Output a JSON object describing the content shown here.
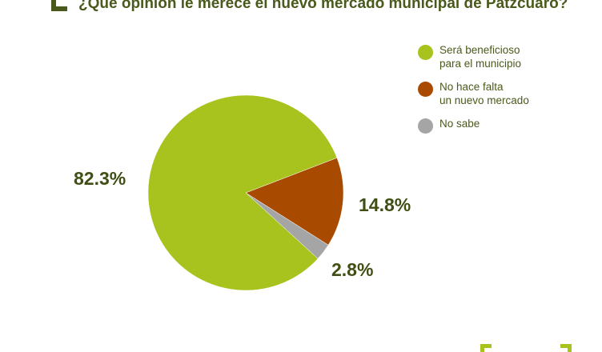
{
  "chart_data": {
    "type": "pie",
    "title": "¿Qué opinión le merece el nuevo mercado municipal de Patzcuaro?",
    "slices": [
      {
        "label": "Será beneficioso\npara el municipio",
        "value": 82.3,
        "display": "82.3%",
        "color": "#a8c21e"
      },
      {
        "label": "No hace falta\nun nuevo mercado",
        "value": 14.8,
        "display": "14.8%",
        "color": "#a84a00"
      },
      {
        "label": "No sabe",
        "value": 2.8,
        "display": "2.8%",
        "color": "#a5a5a5"
      }
    ],
    "legend_position": "top-right"
  }
}
